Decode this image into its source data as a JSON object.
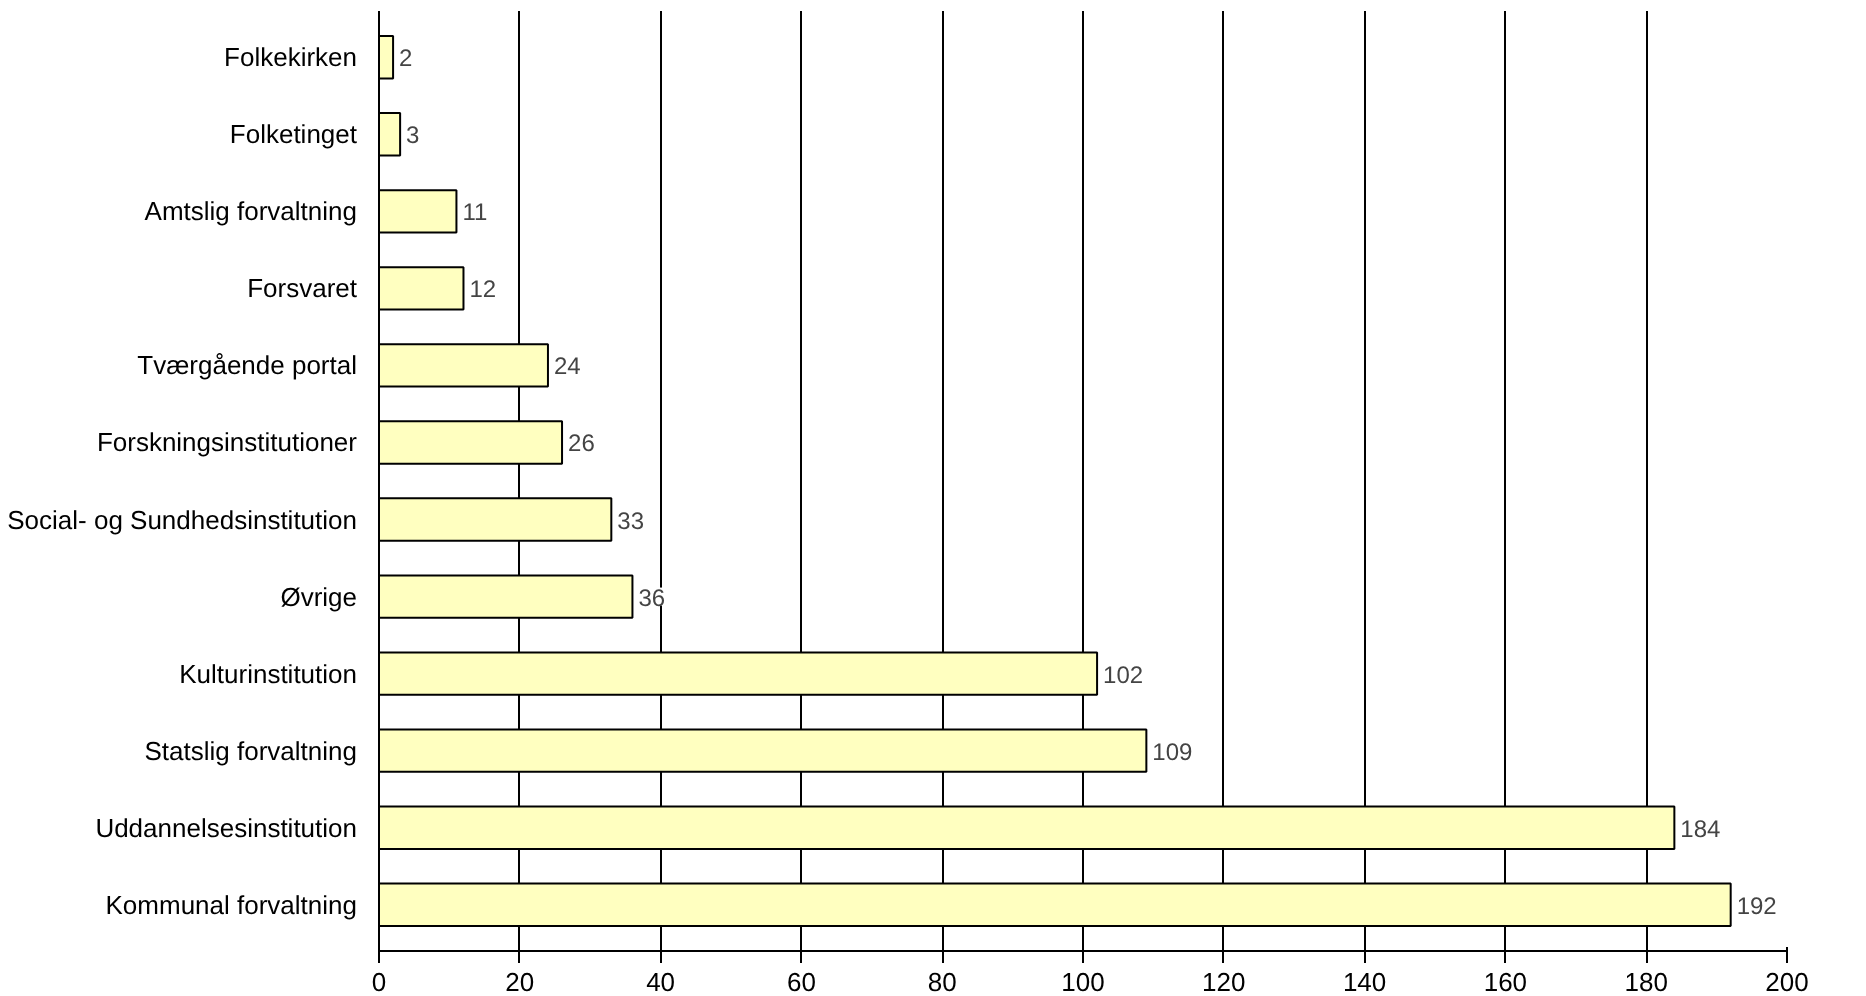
{
  "chart_data": {
    "type": "bar",
    "orientation": "horizontal",
    "categories": [
      "Folkekirken",
      "Folketinget",
      "Amtslig forvaltning",
      "Forsvaret",
      "Tværgående portal",
      "Forskningsinstitutioner",
      "Social- og Sundhedsinstitution",
      "Øvrige",
      "Kulturinstitution",
      "Statslig forvaltning",
      "Uddannelsesinstitution",
      "Kommunal forvaltning"
    ],
    "values": [
      2,
      3,
      11,
      12,
      24,
      26,
      33,
      36,
      102,
      109,
      184,
      192
    ],
    "color": "#ffffc0",
    "xlim": [
      0,
      200
    ],
    "xticks": [
      0,
      20,
      40,
      60,
      80,
      100,
      120,
      140,
      160,
      180,
      200
    ],
    "grid": "x",
    "data_labels": true
  }
}
